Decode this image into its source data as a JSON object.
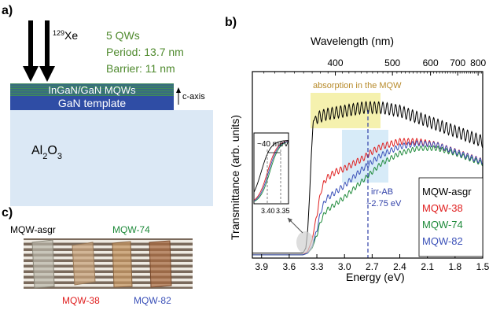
{
  "panel_a": {
    "label": "a)",
    "ion": "Xe",
    "ion_mass": "129",
    "info": [
      "5 QWs",
      "Period: 13.7 nm",
      "Barrier: 11 nm"
    ],
    "layer_mqw": "InGaN/GaN MQWs",
    "layer_template": "GaN template",
    "axis_label": "c-axis",
    "axis_prefix": "",
    "substrate_main": "Al",
    "substrate_sub1": "2",
    "substrate_mid": "O",
    "substrate_sub2": "3",
    "colors": {
      "mqw_text": "#ffffff",
      "info_text": "#4f8a2e",
      "template": "#2f4da5",
      "substrate": "#dbe8f5"
    }
  },
  "panel_b": {
    "label": "b)",
    "annotation_absorption": "absorption in the MQW",
    "annotation_irr_line1": "irr-AB",
    "annotation_irr_line2": "~2.75 eV",
    "inset_label": "~40 meV",
    "inset_ticks": [
      "3.40",
      "3.35"
    ]
  },
  "panel_c": {
    "label": "c)",
    "samples": [
      {
        "name": "MQW-asgr",
        "color": "#000000"
      },
      {
        "name": "MQW-74",
        "color": "#1e8a3a"
      },
      {
        "name": "MQW-38",
        "color": "#e02020"
      },
      {
        "name": "MQW-82",
        "color": "#3a50b8"
      }
    ]
  },
  "chart_data": {
    "type": "line",
    "xlabel": "Energy (eV)",
    "ylabel": "Transmittance (arb. units)",
    "x2label": "Wavelength (nm)",
    "xlim": [
      4.0,
      1.5
    ],
    "x_ticks": [
      "3.9",
      "3.6",
      "3.3",
      "3.0",
      "2.7",
      "2.4",
      "2.1",
      "1.8",
      "1.5"
    ],
    "x2_ticks": [
      "400",
      "500",
      "600",
      "700",
      "800"
    ],
    "legend": "right",
    "series": [
      {
        "name": "MQW-asgr",
        "color": "#000000",
        "x": [
          3.45,
          3.42,
          3.4,
          3.38,
          3.36,
          3.34,
          3.3,
          3.2,
          3.0,
          2.8,
          2.6,
          2.4,
          2.2,
          2.0,
          1.8,
          1.6,
          1.5
        ],
        "y": [
          0.02,
          0.05,
          0.15,
          0.35,
          0.6,
          0.8,
          0.82,
          0.84,
          0.86,
          0.88,
          0.88,
          0.86,
          0.82,
          0.78,
          0.74,
          0.7,
          0.68
        ]
      },
      {
        "name": "MQW-38",
        "color": "#e02020",
        "x": [
          3.45,
          3.4,
          3.35,
          3.3,
          3.25,
          3.2,
          3.1,
          3.0,
          2.9,
          2.8,
          2.7,
          2.6,
          2.4,
          2.2,
          2.0,
          1.8,
          1.6,
          1.5
        ],
        "y": [
          0.01,
          0.03,
          0.1,
          0.25,
          0.4,
          0.46,
          0.5,
          0.52,
          0.55,
          0.58,
          0.62,
          0.65,
          0.68,
          0.68,
          0.66,
          0.62,
          0.58,
          0.56
        ]
      },
      {
        "name": "MQW-74",
        "color": "#1e8a3a",
        "x": [
          3.45,
          3.4,
          3.35,
          3.3,
          3.25,
          3.2,
          3.1,
          3.0,
          2.9,
          2.8,
          2.7,
          2.6,
          2.4,
          2.2,
          2.0,
          1.8,
          1.6,
          1.5
        ],
        "y": [
          0.01,
          0.02,
          0.05,
          0.13,
          0.22,
          0.27,
          0.31,
          0.35,
          0.4,
          0.45,
          0.5,
          0.55,
          0.61,
          0.64,
          0.64,
          0.61,
          0.57,
          0.55
        ]
      },
      {
        "name": "MQW-82",
        "color": "#3a50b8",
        "x": [
          3.45,
          3.4,
          3.35,
          3.3,
          3.25,
          3.2,
          3.1,
          3.0,
          2.9,
          2.8,
          2.7,
          2.6,
          2.4,
          2.2,
          2.0,
          1.8,
          1.6,
          1.5
        ],
        "y": [
          0.01,
          0.02,
          0.06,
          0.16,
          0.28,
          0.34,
          0.38,
          0.42,
          0.47,
          0.52,
          0.56,
          0.6,
          0.65,
          0.67,
          0.66,
          0.62,
          0.58,
          0.56
        ]
      }
    ]
  }
}
